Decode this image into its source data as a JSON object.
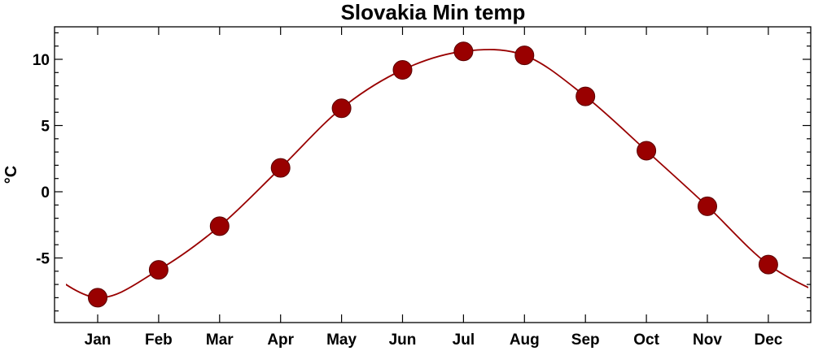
{
  "chart_data": {
    "type": "line",
    "title": "Slovakia Min temp",
    "xlabel": "",
    "ylabel": "°C",
    "categories": [
      "Jan",
      "Feb",
      "Mar",
      "Apr",
      "May",
      "Jun",
      "Jul",
      "Aug",
      "Sep",
      "Oct",
      "Nov",
      "Dec"
    ],
    "y_ticks": [
      "10",
      "5",
      "0",
      "-5"
    ],
    "ylim": [
      -10,
      12.5
    ],
    "grid": false,
    "series": [
      {
        "values": [
          -8.0,
          -5.9,
          -2.6,
          1.8,
          6.3,
          9.2,
          10.6,
          10.3,
          7.2,
          3.1,
          -1.1,
          -5.5
        ],
        "color": "#990000"
      }
    ]
  }
}
